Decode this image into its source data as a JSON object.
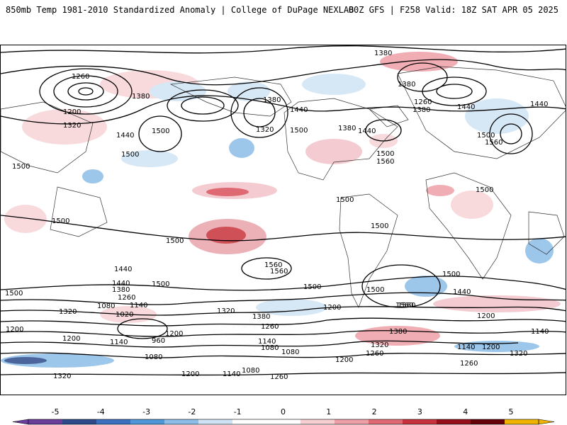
{
  "header": {
    "title": "850mb Temp 1981-2010 Standardized Anomaly | College of DuPage NEXLAB",
    "run_info": "00Z GFS | F258 Valid: 18Z SAT APR 05 2025"
  },
  "map": {
    "projection": "global equirectangular",
    "contour_labels": [
      "1380",
      "1260",
      "1200",
      "1320",
      "1380",
      "1440",
      "1500",
      "1500",
      "1380",
      "1320",
      "1440",
      "1500",
      "1380",
      "1440",
      "1260",
      "1380",
      "1500",
      "1560",
      "1440",
      "1380",
      "1440",
      "1500",
      "1560",
      "1500",
      "1500",
      "1500",
      "1500",
      "1500",
      "1500",
      "1560",
      "1560",
      "1560",
      "1440",
      "1500",
      "1380",
      "1260",
      "1140",
      "1080",
      "1020",
      "1320",
      "1200",
      "1140",
      "1080",
      "960",
      "1200",
      "1320",
      "1380",
      "1260",
      "1140",
      "1080",
      "1080",
      "1200",
      "1260",
      "1200",
      "1320",
      "1380",
      "1500",
      "1560",
      "1440",
      "1200",
      "1140",
      "1200",
      "1140",
      "1320",
      "1260",
      "1200",
      "1140",
      "1080",
      "1260",
      "1500",
      "1440",
      "1500",
      "1500",
      "1200",
      "1320"
    ]
  },
  "legend": {
    "ticks": [
      "-5",
      "-4",
      "-3",
      "-2",
      "-1",
      "0",
      "1",
      "2",
      "3",
      "4",
      "5"
    ],
    "colors": [
      "#6a3d9a",
      "#2c4a8a",
      "#3b6fbf",
      "#4f97d8",
      "#8cbde8",
      "#cfe3f5",
      "#ffffff",
      "#ffffff",
      "#f7cfd3",
      "#eea0a8",
      "#e06a74",
      "#c8323c",
      "#96101c",
      "#650008",
      "#f0b400"
    ]
  }
}
